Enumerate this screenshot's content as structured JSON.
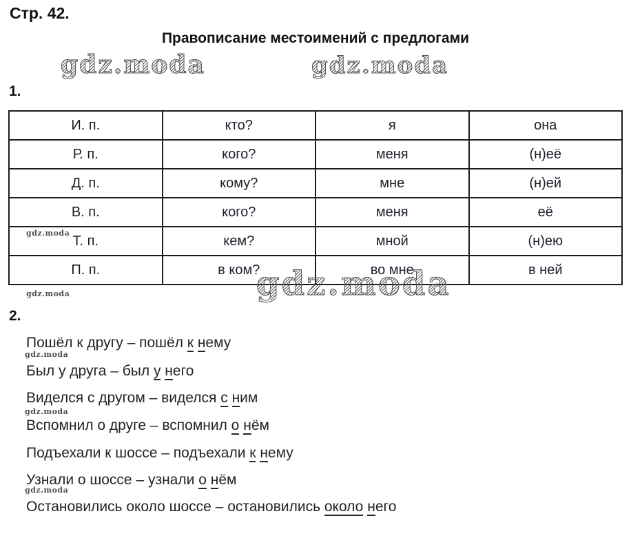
{
  "page": {
    "page_label": "Стр. 42.",
    "title": "Правописание местоимений с предлогами",
    "watermark": "gdz.moda",
    "section1_label": "1.",
    "section2_label": "2."
  },
  "colors": {
    "text": "#242424",
    "table_border": "#1c1c1c",
    "watermark_gray": "#555555"
  },
  "table": {
    "rows": [
      {
        "case": "И. п.",
        "question": "кто?",
        "first_person": "я",
        "third_person": "она"
      },
      {
        "case": "Р. п.",
        "question": "кого?",
        "first_person": "меня",
        "third_person": "(н)её"
      },
      {
        "case": "Д. п.",
        "question": "кому?",
        "first_person": "мне",
        "third_person": "(н)ей"
      },
      {
        "case": "В. п.",
        "question": "кого?",
        "first_person": "меня",
        "third_person": "её"
      },
      {
        "case": "Т. п.",
        "question": "кем?",
        "first_person": "мной",
        "third_person": "(н)ею"
      },
      {
        "case": "П. п.",
        "question": "в ком?",
        "first_person": "во мне",
        "third_person": "в ней"
      }
    ]
  },
  "exercise2": {
    "lines": [
      {
        "pre": "Пошёл к другу – пошёл ",
        "u1": "к",
        "sep": " ",
        "u2": "н",
        "post": "ему"
      },
      {
        "pre": "Был у друга – был ",
        "u1": "у",
        "sep": " ",
        "u2": "н",
        "post": "его"
      },
      {
        "pre": "Виделся с другом – виделся ",
        "u1": "с",
        "sep": " ",
        "u2": "н",
        "post": "им"
      },
      {
        "pre": "Вспомнил о друге – вспомнил ",
        "u1": "о",
        "sep": " ",
        "u2": "н",
        "post": "ём"
      },
      {
        "pre": "Подъехали к шоссе – подъехали ",
        "u1": "к",
        "sep": " ",
        "u2": "н",
        "post": "ему"
      },
      {
        "pre": "Узнали о шоссе – узнали ",
        "u1": "о",
        "sep": " ",
        "u2": "н",
        "post": "ём"
      },
      {
        "pre": "Остановились около шоссе – остановились ",
        "u1": "около",
        "sep": " ",
        "u2": "н",
        "post": "его"
      }
    ]
  }
}
